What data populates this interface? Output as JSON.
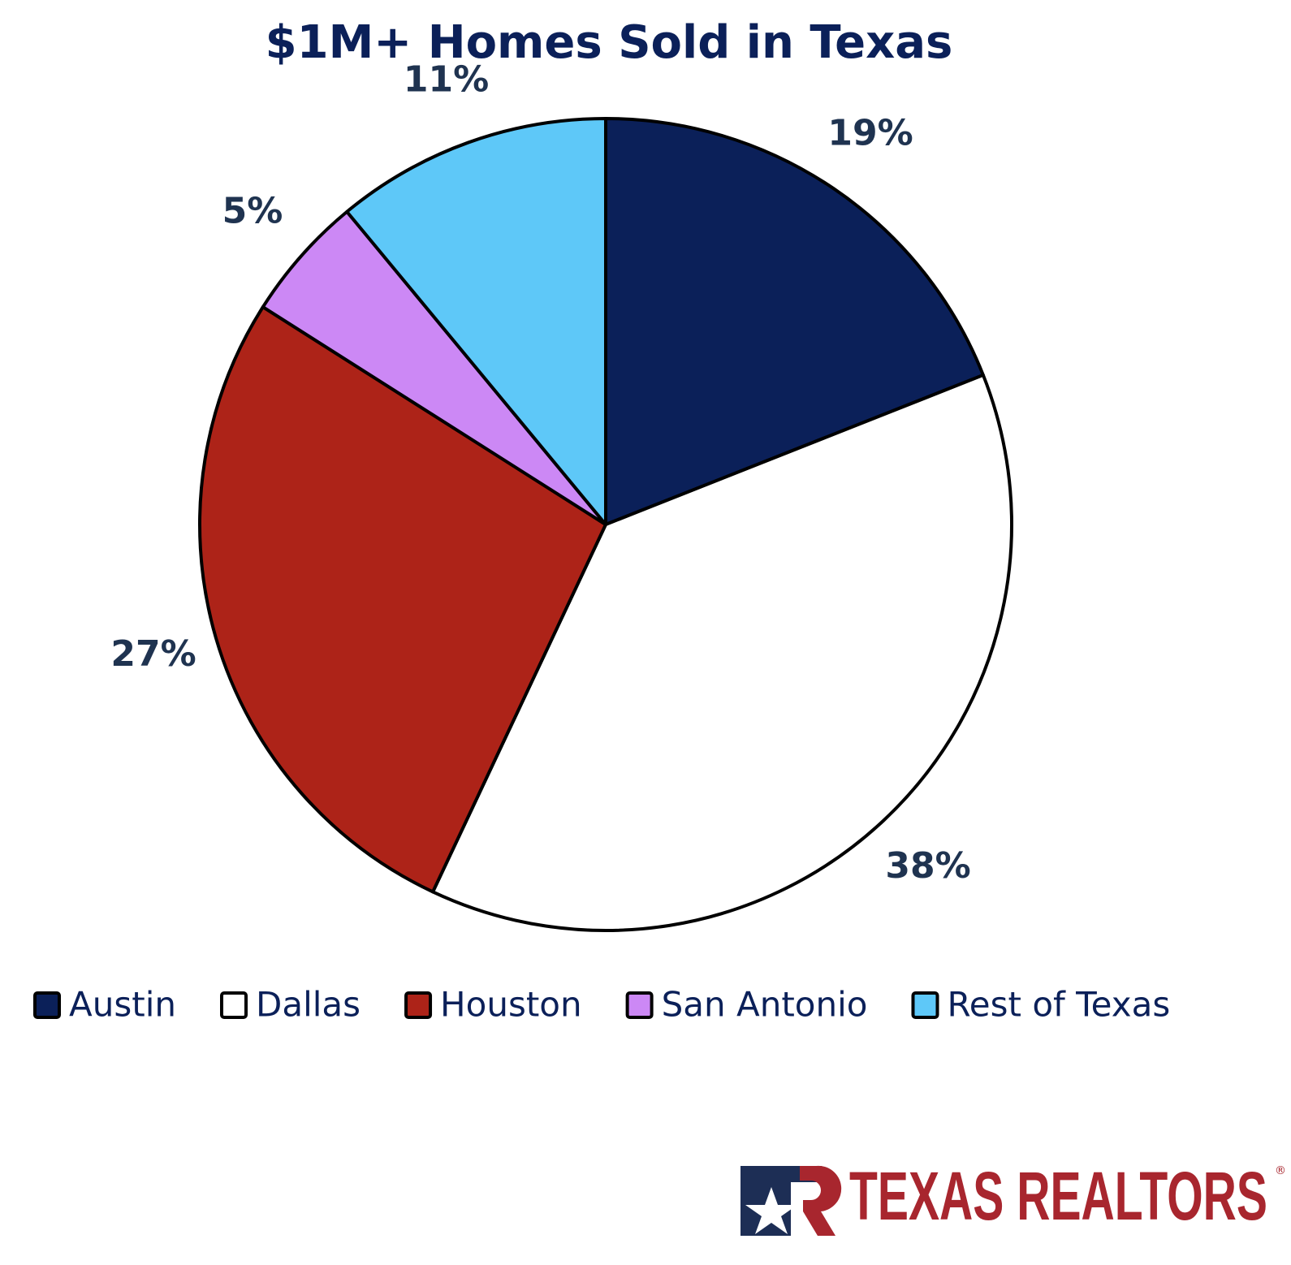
{
  "chart_data": {
    "type": "pie",
    "title": "$1M+ Homes Sold in Texas",
    "categories": [
      "Austin",
      "Dallas",
      "Houston",
      "San Antonio",
      "Rest of Texas"
    ],
    "values": [
      19,
      38,
      27,
      5,
      11
    ],
    "value_labels": [
      "19%",
      "38%",
      "27%",
      "5%",
      "11%"
    ],
    "colors": [
      "#0b2059",
      "#ffffff",
      "#ad2318",
      "#cc88f5",
      "#5ec8f8"
    ],
    "legend": "bottom"
  },
  "logo": {
    "text": "TEXAS REALTORS",
    "mark": "®"
  }
}
